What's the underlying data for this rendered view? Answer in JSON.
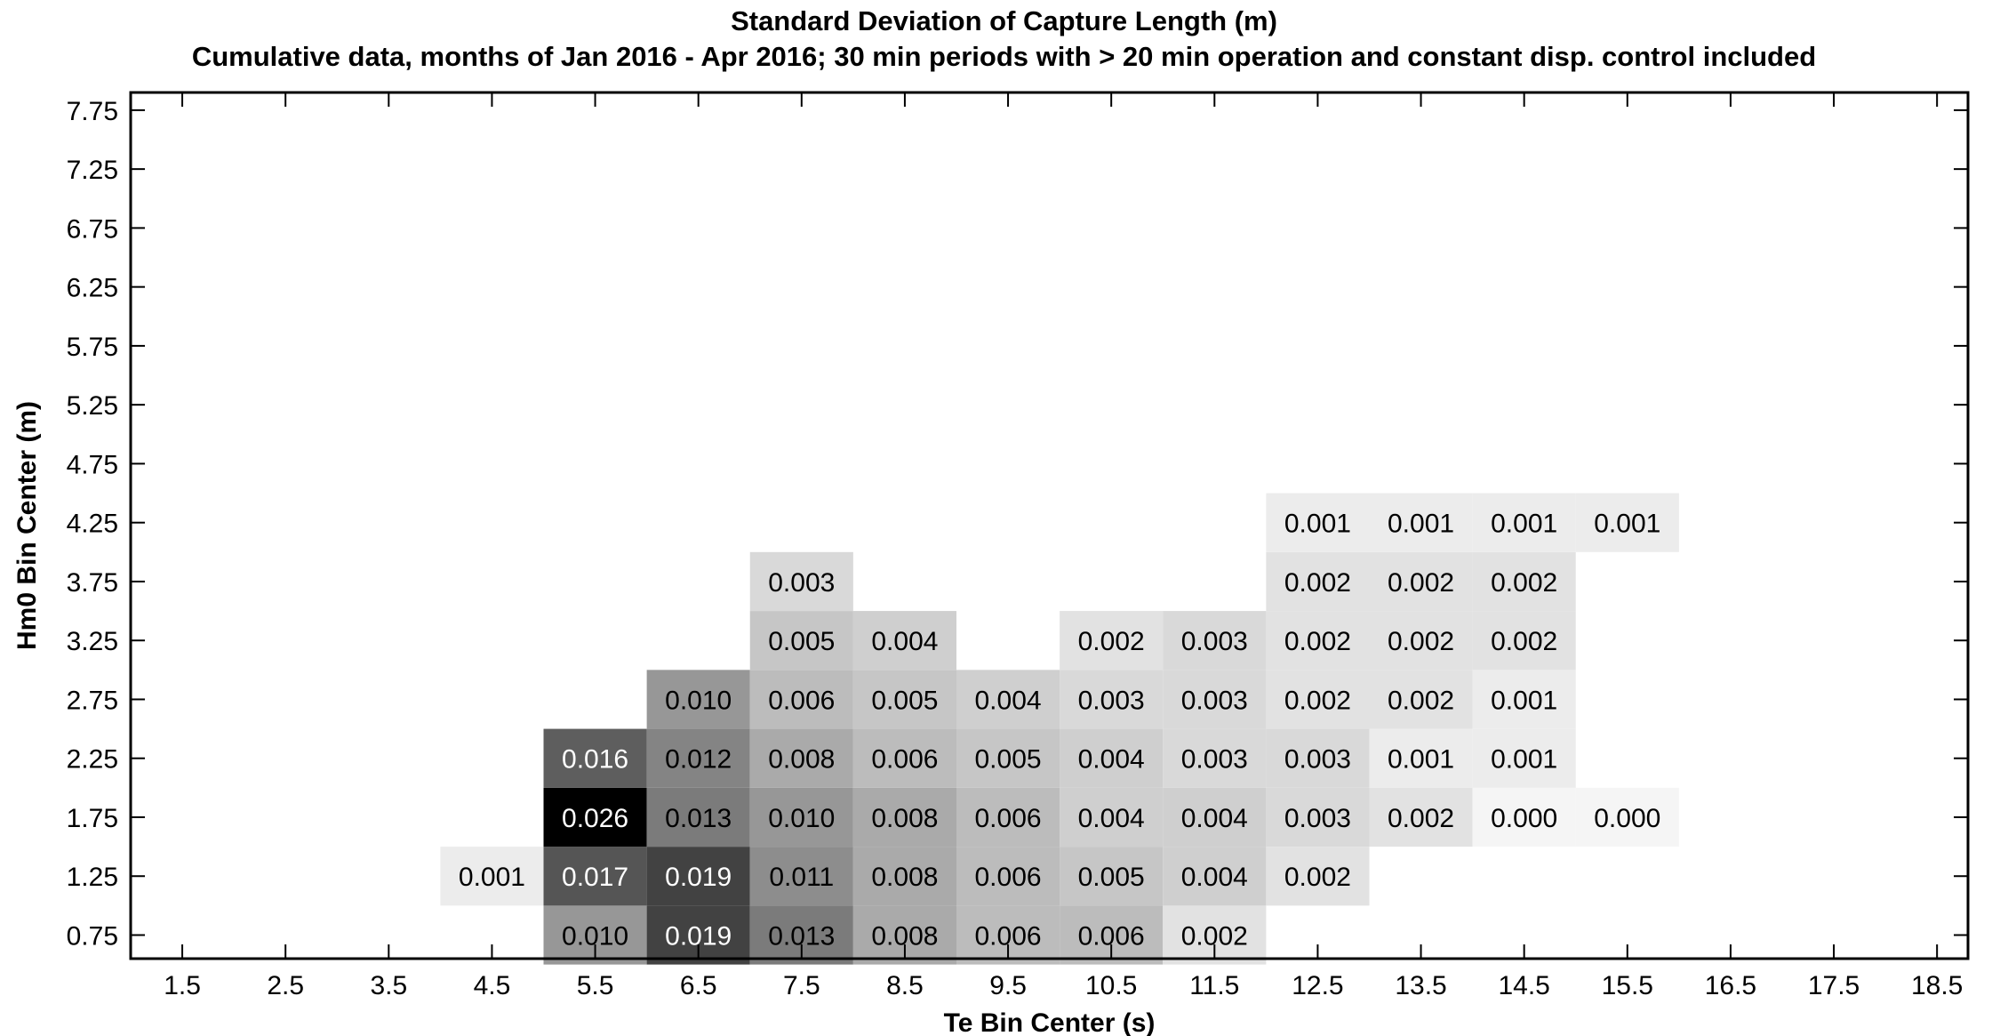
{
  "title": "Standard Deviation of Capture Length (m)",
  "subtitle": "Cumulative data, months of Jan 2016 - Apr 2016; 30 min periods with > 20 min operation and constant disp. control included",
  "chart_data": {
    "type": "heatmap",
    "xlabel": "Te Bin Center (s)",
    "ylabel": "Hm0 Bin Center (m)",
    "x": [
      1.5,
      2.5,
      3.5,
      4.5,
      5.5,
      6.5,
      7.5,
      8.5,
      9.5,
      10.5,
      11.5,
      12.5,
      13.5,
      14.5,
      15.5,
      16.5,
      17.5,
      18.5
    ],
    "y": [
      0.75,
      1.25,
      1.75,
      2.25,
      2.75,
      3.25,
      3.75,
      4.25,
      4.75,
      5.25,
      5.75,
      6.25,
      6.75,
      7.25,
      7.75
    ],
    "x_tick_labels": [
      "1.5",
      "2.5",
      "3.5",
      "4.5",
      "5.5",
      "6.5",
      "7.5",
      "8.5",
      "9.5",
      "10.5",
      "11.5",
      "12.5",
      "13.5",
      "14.5",
      "15.5",
      "16.5",
      "17.5",
      "18.5"
    ],
    "y_tick_labels": [
      "0.75",
      "1.25",
      "1.75",
      "2.25",
      "2.75",
      "3.25",
      "3.75",
      "4.25",
      "4.75",
      "5.25",
      "5.75",
      "6.25",
      "6.75",
      "7.25",
      "7.75"
    ],
    "xlim": [
      1.0,
      18.8
    ],
    "ylim": [
      0.55,
      7.9
    ],
    "color_max": 0.026,
    "colormap": "gray (white = low, black = high)",
    "cells": [
      {
        "x": 5.5,
        "y": 0.75,
        "value": 0.01,
        "label": "0.010"
      },
      {
        "x": 6.5,
        "y": 0.75,
        "value": 0.019,
        "label": "0.019"
      },
      {
        "x": 7.5,
        "y": 0.75,
        "value": 0.013,
        "label": "0.013"
      },
      {
        "x": 8.5,
        "y": 0.75,
        "value": 0.008,
        "label": "0.008"
      },
      {
        "x": 9.5,
        "y": 0.75,
        "value": 0.006,
        "label": "0.006"
      },
      {
        "x": 10.5,
        "y": 0.75,
        "value": 0.006,
        "label": "0.006"
      },
      {
        "x": 11.5,
        "y": 0.75,
        "value": 0.002,
        "label": "0.002"
      },
      {
        "x": 4.5,
        "y": 1.25,
        "value": 0.001,
        "label": "0.001"
      },
      {
        "x": 5.5,
        "y": 1.25,
        "value": 0.017,
        "label": "0.017"
      },
      {
        "x": 6.5,
        "y": 1.25,
        "value": 0.019,
        "label": "0.019"
      },
      {
        "x": 7.5,
        "y": 1.25,
        "value": 0.011,
        "label": "0.011"
      },
      {
        "x": 8.5,
        "y": 1.25,
        "value": 0.008,
        "label": "0.008"
      },
      {
        "x": 9.5,
        "y": 1.25,
        "value": 0.006,
        "label": "0.006"
      },
      {
        "x": 10.5,
        "y": 1.25,
        "value": 0.005,
        "label": "0.005"
      },
      {
        "x": 11.5,
        "y": 1.25,
        "value": 0.004,
        "label": "0.004"
      },
      {
        "x": 12.5,
        "y": 1.25,
        "value": 0.002,
        "label": "0.002"
      },
      {
        "x": 5.5,
        "y": 1.75,
        "value": 0.026,
        "label": "0.026"
      },
      {
        "x": 6.5,
        "y": 1.75,
        "value": 0.013,
        "label": "0.013"
      },
      {
        "x": 7.5,
        "y": 1.75,
        "value": 0.01,
        "label": "0.010"
      },
      {
        "x": 8.5,
        "y": 1.75,
        "value": 0.008,
        "label": "0.008"
      },
      {
        "x": 9.5,
        "y": 1.75,
        "value": 0.006,
        "label": "0.006"
      },
      {
        "x": 10.5,
        "y": 1.75,
        "value": 0.004,
        "label": "0.004"
      },
      {
        "x": 11.5,
        "y": 1.75,
        "value": 0.004,
        "label": "0.004"
      },
      {
        "x": 12.5,
        "y": 1.75,
        "value": 0.003,
        "label": "0.003"
      },
      {
        "x": 13.5,
        "y": 1.75,
        "value": 0.002,
        "label": "0.002"
      },
      {
        "x": 14.5,
        "y": 1.75,
        "value": 0.0,
        "label": "0.000"
      },
      {
        "x": 15.5,
        "y": 1.75,
        "value": 0.0,
        "label": "0.000"
      },
      {
        "x": 5.5,
        "y": 2.25,
        "value": 0.016,
        "label": "0.016"
      },
      {
        "x": 6.5,
        "y": 2.25,
        "value": 0.012,
        "label": "0.012"
      },
      {
        "x": 7.5,
        "y": 2.25,
        "value": 0.008,
        "label": "0.008"
      },
      {
        "x": 8.5,
        "y": 2.25,
        "value": 0.006,
        "label": "0.006"
      },
      {
        "x": 9.5,
        "y": 2.25,
        "value": 0.005,
        "label": "0.005"
      },
      {
        "x": 10.5,
        "y": 2.25,
        "value": 0.004,
        "label": "0.004"
      },
      {
        "x": 11.5,
        "y": 2.25,
        "value": 0.003,
        "label": "0.003"
      },
      {
        "x": 12.5,
        "y": 2.25,
        "value": 0.003,
        "label": "0.003"
      },
      {
        "x": 13.5,
        "y": 2.25,
        "value": 0.001,
        "label": "0.001"
      },
      {
        "x": 14.5,
        "y": 2.25,
        "value": 0.001,
        "label": "0.001"
      },
      {
        "x": 6.5,
        "y": 2.75,
        "value": 0.01,
        "label": "0.010"
      },
      {
        "x": 7.5,
        "y": 2.75,
        "value": 0.006,
        "label": "0.006"
      },
      {
        "x": 8.5,
        "y": 2.75,
        "value": 0.005,
        "label": "0.005"
      },
      {
        "x": 9.5,
        "y": 2.75,
        "value": 0.004,
        "label": "0.004"
      },
      {
        "x": 10.5,
        "y": 2.75,
        "value": 0.003,
        "label": "0.003"
      },
      {
        "x": 11.5,
        "y": 2.75,
        "value": 0.003,
        "label": "0.003"
      },
      {
        "x": 12.5,
        "y": 2.75,
        "value": 0.002,
        "label": "0.002"
      },
      {
        "x": 13.5,
        "y": 2.75,
        "value": 0.002,
        "label": "0.002"
      },
      {
        "x": 14.5,
        "y": 2.75,
        "value": 0.001,
        "label": "0.001"
      },
      {
        "x": 7.5,
        "y": 3.25,
        "value": 0.005,
        "label": "0.005"
      },
      {
        "x": 8.5,
        "y": 3.25,
        "value": 0.004,
        "label": "0.004"
      },
      {
        "x": 10.5,
        "y": 3.25,
        "value": 0.002,
        "label": "0.002"
      },
      {
        "x": 11.5,
        "y": 3.25,
        "value": 0.003,
        "label": "0.003"
      },
      {
        "x": 12.5,
        "y": 3.25,
        "value": 0.002,
        "label": "0.002"
      },
      {
        "x": 13.5,
        "y": 3.25,
        "value": 0.002,
        "label": "0.002"
      },
      {
        "x": 14.5,
        "y": 3.25,
        "value": 0.002,
        "label": "0.002"
      },
      {
        "x": 7.5,
        "y": 3.75,
        "value": 0.003,
        "label": "0.003"
      },
      {
        "x": 12.5,
        "y": 3.75,
        "value": 0.002,
        "label": "0.002"
      },
      {
        "x": 13.5,
        "y": 3.75,
        "value": 0.002,
        "label": "0.002"
      },
      {
        "x": 14.5,
        "y": 3.75,
        "value": 0.002,
        "label": "0.002"
      },
      {
        "x": 12.5,
        "y": 4.25,
        "value": 0.001,
        "label": "0.001"
      },
      {
        "x": 13.5,
        "y": 4.25,
        "value": 0.001,
        "label": "0.001"
      },
      {
        "x": 14.5,
        "y": 4.25,
        "value": 0.001,
        "label": "0.001"
      },
      {
        "x": 15.5,
        "y": 4.25,
        "value": 0.001,
        "label": "0.001"
      }
    ],
    "grid": false,
    "legend": "none"
  }
}
